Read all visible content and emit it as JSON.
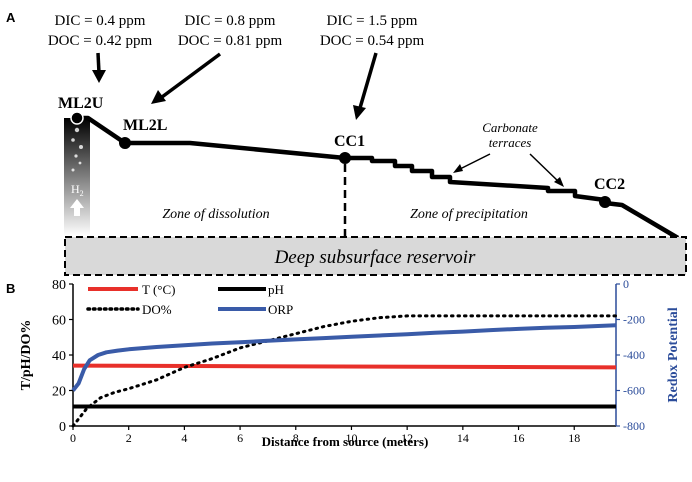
{
  "panel_a": {
    "label": "A",
    "annotations": [
      {
        "dic": "DIC = 0.4 ppm",
        "doc": "DOC = 0.42 ppm"
      },
      {
        "dic": "DIC = 0.8 ppm",
        "doc": "DOC = 0.81 ppm"
      },
      {
        "dic": "DIC = 1.5 ppm",
        "doc": "DOC = 0.54 ppm"
      }
    ],
    "sites": [
      "ML2U",
      "ML2L",
      "CC1",
      "CC2"
    ],
    "h2_label": "H",
    "h2_sub": "2",
    "terraces_line1": "Carbonate",
    "terraces_line2": "terraces",
    "zone_dissolution": "Zone of dissolution",
    "zone_precipitation": "Zone of precipitation",
    "reservoir": "Deep subsurface reservoir",
    "colors": {
      "profile": "#000000",
      "reservoir_fill": "#d9d9d9"
    }
  },
  "panel_b": {
    "label": "B",
    "chart_data": {
      "type": "line",
      "xlabel": "Distance from source (meters)",
      "ylabel_left": "T/pH/DO%",
      "ylabel_right": "Redox Potential",
      "xlim": [
        0,
        19.5
      ],
      "ylim_left": [
        0,
        80
      ],
      "ylim_right": [
        -800,
        0
      ],
      "x_ticks": [
        0,
        2,
        4,
        6,
        8,
        10,
        12,
        14,
        16,
        18
      ],
      "y_left_ticks": [
        0,
        20,
        40,
        60,
        80
      ],
      "y_right_ticks": [
        -800,
        -600,
        -400,
        -200,
        0
      ],
      "series": [
        {
          "name": "T (°C)",
          "axis": "left",
          "color": "#e8302a",
          "dash": "solid",
          "x": [
            0,
            19.5
          ],
          "y": [
            34,
            33
          ]
        },
        {
          "name": "pH",
          "axis": "left",
          "color": "#000000",
          "dash": "solid",
          "x": [
            0,
            19.5
          ],
          "y": [
            11,
            11
          ]
        },
        {
          "name": "DO%",
          "axis": "left",
          "color": "#000000",
          "dash": "dotted",
          "x": [
            0,
            0.2,
            0.5,
            1,
            1.5,
            2,
            3,
            4,
            5,
            6,
            7,
            8,
            9,
            10,
            11,
            12,
            13,
            14,
            15,
            16,
            17,
            18,
            19.5
          ],
          "y": [
            0,
            4,
            10,
            16,
            19,
            21,
            26,
            33,
            38,
            44,
            48,
            52,
            56,
            59,
            61,
            62,
            62,
            62,
            62,
            62,
            62,
            62,
            62
          ]
        },
        {
          "name": "ORP",
          "axis": "right",
          "color": "#3a5ba8",
          "dash": "solid",
          "x": [
            0,
            0.2,
            0.4,
            0.6,
            0.9,
            1.2,
            1.6,
            2,
            3,
            4,
            5,
            6,
            7,
            8,
            9,
            10,
            11,
            12,
            13,
            14,
            15,
            16,
            17,
            18,
            19.5
          ],
          "y": [
            -600,
            -560,
            -480,
            -430,
            -400,
            -385,
            -375,
            -368,
            -355,
            -345,
            -335,
            -328,
            -320,
            -312,
            -305,
            -297,
            -290,
            -283,
            -275,
            -268,
            -260,
            -253,
            -247,
            -242,
            -232
          ]
        }
      ]
    }
  }
}
